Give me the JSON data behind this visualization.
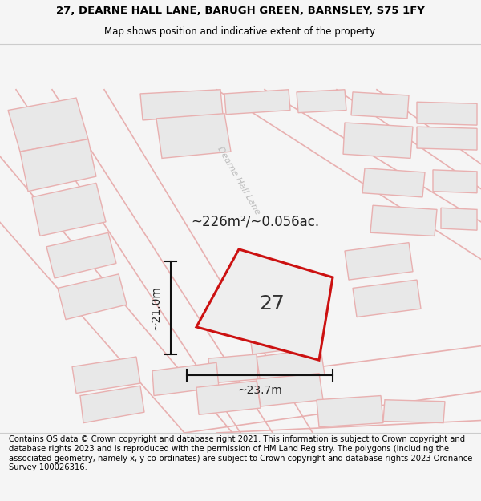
{
  "title_line1": "27, DEARNE HALL LANE, BARUGH GREEN, BARNSLEY, S75 1FY",
  "title_line2": "Map shows position and indicative extent of the property.",
  "footer_text": "Contains OS data © Crown copyright and database right 2021. This information is subject to Crown copyright and database rights 2023 and is reproduced with the permission of HM Land Registry. The polygons (including the associated geometry, namely x, y co-ordinates) are subject to Crown copyright and database rights 2023 Ordnance Survey 100026316.",
  "area_label": "~226m²/~0.056ac.",
  "number_label": "27",
  "dim_height": "~21.0m",
  "dim_width": "~23.7m",
  "road_label": "Dearne Hall Lane",
  "bg_color": "#f5f5f5",
  "map_bg": "#ffffff",
  "building_fill": "#e8e8e8",
  "building_edge": "#e8b0b0",
  "road_line_color": "#e8b0b0",
  "highlight_color": "#cc1111",
  "dim_line_color": "#111111",
  "road_label_color": "#bbbbbb",
  "title_fontsize": 9.5,
  "subtitle_fontsize": 8.5,
  "footer_fontsize": 7.2,
  "number_fontsize": 18,
  "road_label_fontsize": 8,
  "area_label_fontsize": 12,
  "dim_fontsize": 10
}
